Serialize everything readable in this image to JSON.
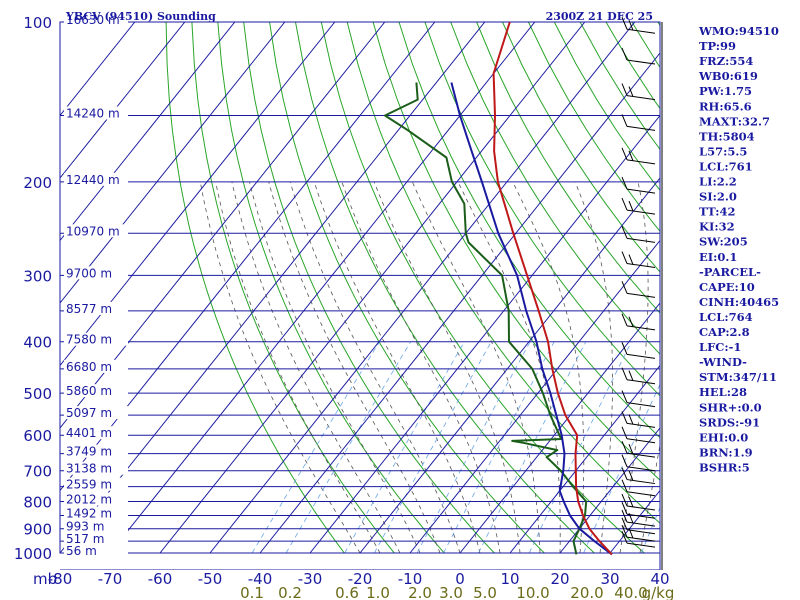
{
  "title": "YBCV (94510) Sounding",
  "time": "2300Z 21 DEC 25",
  "colors": {
    "grid": "#1a1aa0",
    "isotherm": "#1a1aa0",
    "dry_adiabat": "#2aa52a",
    "moist_adiabat": "#555555",
    "mixing_ratio": "#6aa6e8",
    "temperature": "#c01818",
    "dewpoint": "#1a5e1a",
    "parcel": "#1a1aa0"
  },
  "chart_data": {
    "type": "skew-t",
    "x_axis_label": "mb",
    "temperature_ticks": [
      -80,
      -70,
      -60,
      -50,
      -40,
      -30,
      -20,
      -10,
      0,
      10,
      20,
      30,
      40
    ],
    "pressure_levels": [
      100,
      200,
      300,
      400,
      500,
      600,
      700,
      800,
      900,
      1000
    ],
    "height_labels": [
      {
        "p": 100,
        "label": "16630 m"
      },
      {
        "p": 150,
        "label": "14240 m"
      },
      {
        "p": 200,
        "label": "12440 m"
      },
      {
        "p": 250,
        "label": "10970 m"
      },
      {
        "p": 300,
        "label": "9700 m"
      },
      {
        "p": 350,
        "label": "8577 m"
      },
      {
        "p": 400,
        "label": "7580 m"
      },
      {
        "p": 450,
        "label": "6680 m"
      },
      {
        "p": 500,
        "label": "5860 m"
      },
      {
        "p": 550,
        "label": "5097 m"
      },
      {
        "p": 600,
        "label": "4401 m"
      },
      {
        "p": 650,
        "label": "3749 m"
      },
      {
        "p": 700,
        "label": "3138 m"
      },
      {
        "p": 750,
        "label": "2559 m"
      },
      {
        "p": 800,
        "label": "2012 m"
      },
      {
        "p": 850,
        "label": "1492 m"
      },
      {
        "p": 900,
        "label": "993 m"
      },
      {
        "p": 950,
        "label": "517 m"
      },
      {
        "p": 1000,
        "label": "56 m"
      }
    ],
    "mixing_ratio_labels": [
      "0.1",
      "0.2",
      "0.6",
      "1.0",
      "2.0",
      "3.0",
      "5.0",
      "10.0",
      "20.0",
      "40.0",
      "g/kg"
    ],
    "temperature_profile": [
      {
        "p": 1006,
        "t": 30.6
      },
      {
        "p": 950,
        "t": 26.0
      },
      {
        "p": 900,
        "t": 22.0
      },
      {
        "p": 850,
        "t": 18.6
      },
      {
        "p": 800,
        "t": 15.4
      },
      {
        "p": 750,
        "t": 12.6
      },
      {
        "p": 700,
        "t": 10.0
      },
      {
        "p": 650,
        "t": 7.2
      },
      {
        "p": 600,
        "t": 4.6
      },
      {
        "p": 550,
        "t": -1.0
      },
      {
        "p": 500,
        "t": -6.0
      },
      {
        "p": 450,
        "t": -11.0
      },
      {
        "p": 400,
        "t": -16.2
      },
      {
        "p": 350,
        "t": -23.0
      },
      {
        "p": 300,
        "t": -31.0
      },
      {
        "p": 250,
        "t": -40.5
      },
      {
        "p": 200,
        "t": -51.8
      },
      {
        "p": 175,
        "t": -57.5
      },
      {
        "p": 150,
        "t": -63.0
      },
      {
        "p": 125,
        "t": -70.0
      },
      {
        "p": 100,
        "t": -75.0
      }
    ],
    "dewpoint_profile": [
      {
        "p": 1006,
        "td": 23.5
      },
      {
        "p": 950,
        "td": 20.8
      },
      {
        "p": 900,
        "td": 20.0
      },
      {
        "p": 850,
        "td": 19.0
      },
      {
        "p": 800,
        "td": 17.0
      },
      {
        "p": 750,
        "td": 12.0
      },
      {
        "p": 700,
        "td": 7.0
      },
      {
        "p": 660,
        "td": 2.0
      },
      {
        "p": 640,
        "td": 3.0
      },
      {
        "p": 620,
        "td": -5.0
      },
      {
        "p": 615,
        "td": -7.5
      },
      {
        "p": 610,
        "td": 2.0
      },
      {
        "p": 550,
        "td": -4.0
      },
      {
        "p": 500,
        "td": -9.0
      },
      {
        "p": 450,
        "td": -15.0
      },
      {
        "p": 400,
        "td": -24.0
      },
      {
        "p": 350,
        "td": -29.0
      },
      {
        "p": 300,
        "td": -36.0
      },
      {
        "p": 260,
        "td": -48.0
      },
      {
        "p": 250,
        "td": -50.0
      },
      {
        "p": 220,
        "td": -55.0
      },
      {
        "p": 200,
        "td": -61.0
      },
      {
        "p": 180,
        "td": -66.0
      },
      {
        "p": 160,
        "td": -78.0
      },
      {
        "p": 150,
        "td": -85.0
      },
      {
        "p": 140,
        "td": -81.0
      },
      {
        "p": 130,
        "td": -84.0
      }
    ],
    "parcel_profile": [
      {
        "p": 1006,
        "t": 30.6
      },
      {
        "p": 950,
        "t": 25.0
      },
      {
        "p": 900,
        "t": 20.0
      },
      {
        "p": 850,
        "t": 16.0
      },
      {
        "p": 800,
        "t": 12.5
      },
      {
        "p": 764,
        "t": 10.0
      },
      {
        "p": 700,
        "t": 7.5
      },
      {
        "p": 650,
        "t": 5.0
      },
      {
        "p": 600,
        "t": 1.5
      },
      {
        "p": 550,
        "t": -2.8
      },
      {
        "p": 500,
        "t": -7.5
      },
      {
        "p": 450,
        "t": -13.0
      },
      {
        "p": 400,
        "t": -18.5
      },
      {
        "p": 350,
        "t": -25.5
      },
      {
        "p": 300,
        "t": -33.0
      },
      {
        "p": 250,
        "t": -43.5
      },
      {
        "p": 200,
        "t": -55.0
      },
      {
        "p": 175,
        "t": -62.0
      },
      {
        "p": 150,
        "t": -70.0
      },
      {
        "p": 130,
        "t": -77.0
      }
    ],
    "wind_barbs": [
      {
        "p": 105
      },
      {
        "p": 120
      },
      {
        "p": 140
      },
      {
        "p": 160
      },
      {
        "p": 185
      },
      {
        "p": 210
      },
      {
        "p": 230
      },
      {
        "p": 260
      },
      {
        "p": 290
      },
      {
        "p": 330
      },
      {
        "p": 380
      },
      {
        "p": 430
      },
      {
        "p": 480
      },
      {
        "p": 530
      },
      {
        "p": 580
      },
      {
        "p": 620
      },
      {
        "p": 660
      },
      {
        "p": 700
      },
      {
        "p": 740
      },
      {
        "p": 780
      },
      {
        "p": 830
      },
      {
        "p": 860
      },
      {
        "p": 890
      },
      {
        "p": 920
      },
      {
        "p": 950
      },
      {
        "p": 975
      }
    ]
  },
  "stats": [
    "WMO:94510",
    "TP:99",
    "FRZ:554",
    "WB0:619",
    "PW:1.75",
    "RH:65.6",
    "MAXT:32.7",
    "TH:5804",
    "L57:5.5",
    "LCL:761",
    "LI:2.2",
    "SI:2.0",
    "TT:42",
    "KI:32",
    "SW:205",
    "EI:0.1",
    "-PARCEL-",
    "CAPE:10",
    "CINH:40465",
    "LCL:764",
    "CAP:2.8",
    "LFC:-1",
    "-WIND-",
    "STM:347/11",
    "HEL:28",
    "SHR+:0.0",
    "SRDS:-91",
    "EHI:0.0",
    "BRN:1.9",
    "BSHR:5"
  ]
}
